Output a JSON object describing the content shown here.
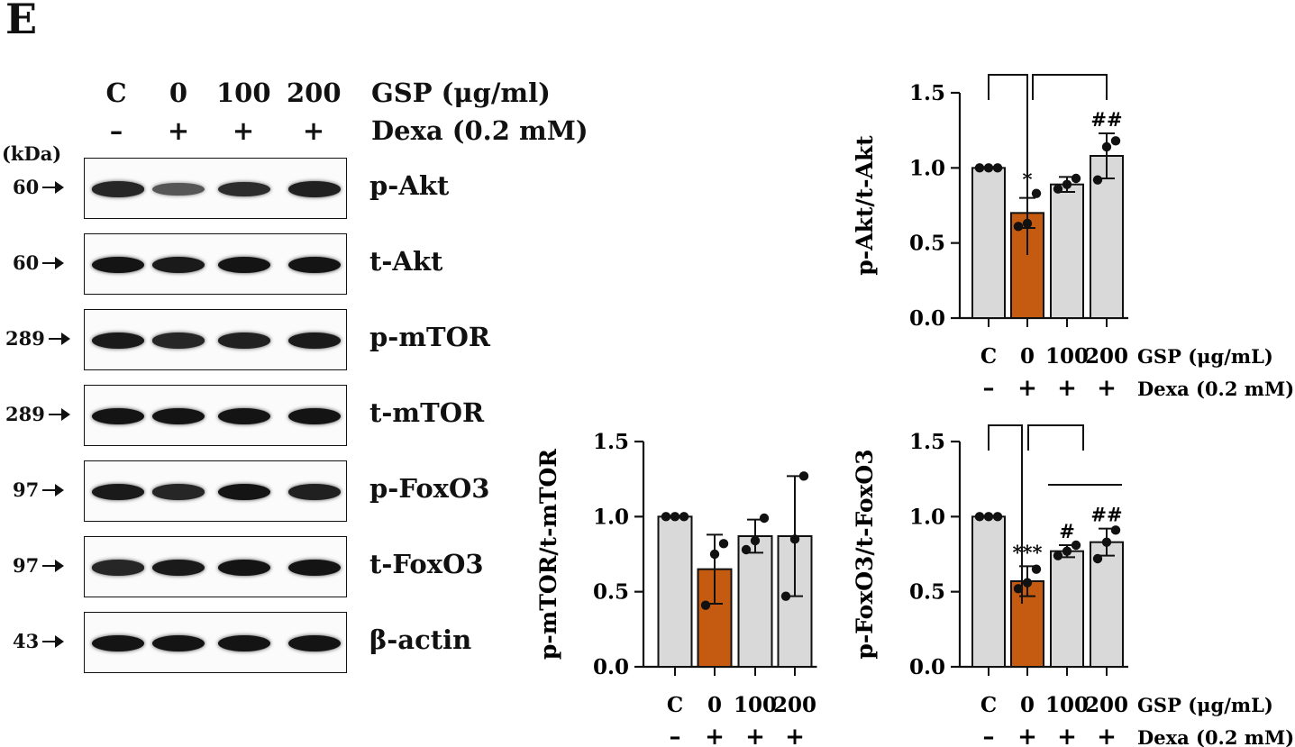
{
  "panel_label": "E",
  "blot": {
    "lanes": [
      "C",
      "0",
      "100",
      "200"
    ],
    "dexa_signs": [
      "–",
      "+",
      "+",
      "+"
    ],
    "gsp_header": "GSP (μg/ml)",
    "dexa_header": "Dexa (0.2 mM)",
    "kda_label": "(kDa)",
    "rows": [
      {
        "name": "p-Akt",
        "mw": "60",
        "intensity": [
          0.85,
          0.45,
          0.8,
          0.9
        ]
      },
      {
        "name": "t-Akt",
        "mw": "60",
        "intensity": [
          1.0,
          0.95,
          1.0,
          1.0
        ]
      },
      {
        "name": "p-mTOR",
        "mw": "289",
        "intensity": [
          0.95,
          0.85,
          0.9,
          0.95
        ]
      },
      {
        "name": "t-mTOR",
        "mw": "289",
        "intensity": [
          1.0,
          1.0,
          1.0,
          1.0
        ]
      },
      {
        "name": "p-FoxO3",
        "mw": "97",
        "intensity": [
          0.95,
          0.85,
          1.0,
          0.9
        ]
      },
      {
        "name": "t-FoxO3",
        "mw": "97",
        "intensity": [
          0.85,
          0.95,
          1.0,
          1.0
        ]
      },
      {
        "name": "β-actin",
        "mw": "43",
        "intensity": [
          1.0,
          1.0,
          1.0,
          1.0
        ]
      }
    ]
  },
  "colors": {
    "control": "#d9d9d9",
    "dexa": "#c55a11",
    "bar_edge": "#111111"
  },
  "chart_data": [
    {
      "type": "bar",
      "ylabel": "p-Akt/t-Akt",
      "categories": [
        "C",
        "0",
        "100",
        "200"
      ],
      "dexa_row": [
        "–",
        "+",
        "+",
        "+"
      ],
      "gsp_label": "GSP (μg/mL)",
      "dexa_label": "Dexa (0.2 mM)",
      "values": [
        1.0,
        0.7,
        0.89,
        1.08
      ],
      "errors": [
        0.0,
        0.1,
        0.05,
        0.15
      ],
      "points": [
        [
          1.0,
          1.0,
          1.0
        ],
        [
          0.61,
          0.63,
          0.83
        ],
        [
          0.86,
          0.89,
          0.93
        ],
        [
          0.92,
          1.14,
          1.18
        ]
      ],
      "annotations": [
        "",
        "*",
        "",
        "##"
      ],
      "ylim": [
        0,
        1.5
      ],
      "yticks": [
        "0.0",
        "0.5",
        "1.0",
        "1.5"
      ],
      "brackets": "C–0, 0–200",
      "grid": false
    },
    {
      "type": "bar",
      "ylabel": "p-mTOR/t-mTOR",
      "categories": [
        "C",
        "0",
        "100",
        "200"
      ],
      "dexa_row": [
        "–",
        "+",
        "+",
        "+"
      ],
      "gsp_label": "",
      "dexa_label": "",
      "values": [
        1.0,
        0.65,
        0.87,
        0.87
      ],
      "errors": [
        0.0,
        0.23,
        0.11,
        0.4
      ],
      "points": [
        [
          1.0,
          1.0,
          1.0
        ],
        [
          0.41,
          0.75,
          0.82
        ],
        [
          0.78,
          0.84,
          0.99
        ],
        [
          0.47,
          0.85,
          1.27
        ]
      ],
      "annotations": [
        "",
        "",
        "",
        ""
      ],
      "ylim": [
        0,
        1.5
      ],
      "yticks": [
        "0.0",
        "0.5",
        "1.0",
        "1.5"
      ],
      "grid": false
    },
    {
      "type": "bar",
      "ylabel": "p-FoxO3/t-FoxO3",
      "categories": [
        "C",
        "0",
        "100",
        "200"
      ],
      "dexa_row": [
        "–",
        "+",
        "+",
        "+"
      ],
      "gsp_label": "GSP (μg/mL)",
      "dexa_label": "Dexa (0.2 mM)",
      "values": [
        1.0,
        0.57,
        0.77,
        0.83
      ],
      "errors": [
        0.0,
        0.1,
        0.04,
        0.09
      ],
      "points": [
        [
          1.0,
          1.0,
          1.0
        ],
        [
          0.52,
          0.56,
          0.65
        ],
        [
          0.74,
          0.77,
          0.81
        ],
        [
          0.72,
          0.83,
          0.91
        ]
      ],
      "annotations": [
        "",
        "***",
        "#",
        "##"
      ],
      "ylim": [
        0,
        1.5
      ],
      "yticks": [
        "0.0",
        "0.5",
        "1.0",
        "1.5"
      ],
      "brackets": "C–0, 0–(100, 200)",
      "grid": false
    }
  ]
}
